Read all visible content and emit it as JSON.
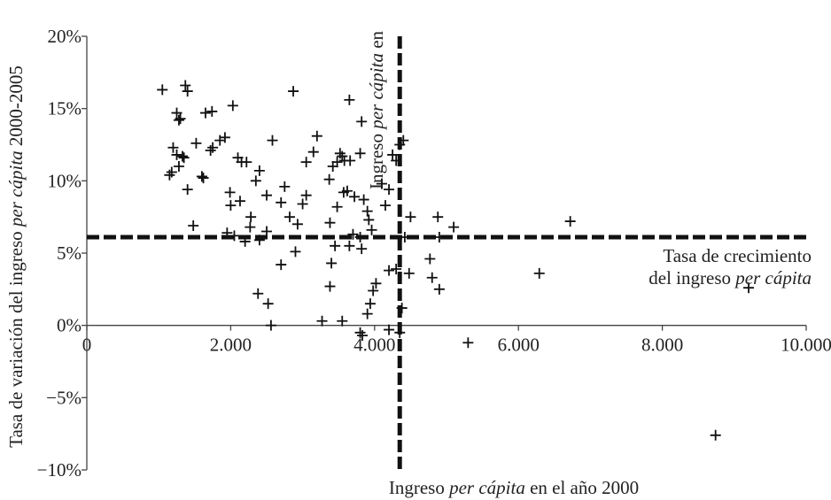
{
  "chart_data": {
    "type": "scatter",
    "xlabel": [
      "Ingreso ",
      "per cápita",
      " en el año 2000"
    ],
    "ylabel": [
      "Tasa de variación del ingreso ",
      "per cápita",
      " 2000-2005"
    ],
    "x_ticks": [
      "0",
      "2.000",
      "4.000",
      "6.000",
      "8.000",
      "10.000"
    ],
    "y_ticks": [
      "−10%",
      "−5%",
      "0%",
      "5%",
      "10%",
      "15%",
      "20%"
    ],
    "xlim": [
      0,
      10000
    ],
    "ylim": [
      -10,
      20
    ],
    "y_unit": "%",
    "grid": false,
    "legend": "none",
    "reference_lines": {
      "vertical_x": 4350,
      "horizontal_y": 6.1
    },
    "annotations": {
      "horizontal_line_label": [
        "Tasa de crecimiento",
        "del ingreso ",
        "per cápita"
      ],
      "vertical_line_label": [
        "Ingreso ",
        "per cápita",
        " en"
      ]
    },
    "points": [
      [
        1050,
        16.3
      ],
      [
        1370,
        16.6
      ],
      [
        1400,
        16.2
      ],
      [
        2030,
        15.2
      ],
      [
        1650,
        14.7
      ],
      [
        1740,
        14.8
      ],
      [
        1250,
        14.7
      ],
      [
        1280,
        14.2
      ],
      [
        1300,
        14.3
      ],
      [
        1920,
        13.0
      ],
      [
        1850,
        12.8
      ],
      [
        1520,
        12.6
      ],
      [
        1200,
        12.3
      ],
      [
        1250,
        11.8
      ],
      [
        1330,
        11.7
      ],
      [
        1350,
        11.6
      ],
      [
        1280,
        11.0
      ],
      [
        1180,
        10.6
      ],
      [
        1150,
        10.4
      ],
      [
        1600,
        10.3
      ],
      [
        1620,
        10.2
      ],
      [
        1720,
        12.1
      ],
      [
        1750,
        12.3
      ],
      [
        2100,
        11.6
      ],
      [
        2150,
        11.3
      ],
      [
        2220,
        11.3
      ],
      [
        2350,
        10.0
      ],
      [
        2400,
        10.7
      ],
      [
        1990,
        9.2
      ],
      [
        1400,
        9.4
      ],
      [
        2500,
        9.0
      ],
      [
        2000,
        8.3
      ],
      [
        2130,
        8.6
      ],
      [
        2280,
        7.5
      ],
      [
        2270,
        6.8
      ],
      [
        1480,
        6.9
      ],
      [
        1950,
        6.4
      ],
      [
        2050,
        6.2
      ],
      [
        2200,
        5.8
      ],
      [
        2400,
        5.9
      ],
      [
        2580,
        12.8
      ],
      [
        2870,
        16.2
      ],
      [
        2750,
        9.6
      ],
      [
        2700,
        8.5
      ],
      [
        2820,
        7.5
      ],
      [
        2930,
        7.0
      ],
      [
        3000,
        8.4
      ],
      [
        3050,
        9.0
      ],
      [
        3050,
        11.3
      ],
      [
        3150,
        12.0
      ],
      [
        3200,
        13.1
      ],
      [
        2900,
        5.1
      ],
      [
        2700,
        4.2
      ],
      [
        2500,
        6.5
      ],
      [
        2380,
        2.2
      ],
      [
        2520,
        1.5
      ],
      [
        2560,
        0.0
      ],
      [
        3270,
        0.3
      ],
      [
        3380,
        2.7
      ],
      [
        3400,
        4.3
      ],
      [
        3450,
        5.5
      ],
      [
        3380,
        7.1
      ],
      [
        3480,
        8.2
      ],
      [
        3370,
        10.1
      ],
      [
        3420,
        11.0
      ],
      [
        3480,
        11.3
      ],
      [
        3520,
        11.9
      ],
      [
        3550,
        11.7
      ],
      [
        3580,
        11.4
      ],
      [
        3660,
        11.4
      ],
      [
        3620,
        9.3
      ],
      [
        3570,
        9.2
      ],
      [
        3720,
        8.9
      ],
      [
        3650,
        15.6
      ],
      [
        3800,
        11.9
      ],
      [
        3820,
        14.1
      ],
      [
        3850,
        8.7
      ],
      [
        3900,
        7.9
      ],
      [
        3920,
        7.3
      ],
      [
        3960,
        6.6
      ],
      [
        3700,
        6.3
      ],
      [
        3800,
        6.1
      ],
      [
        3650,
        5.5
      ],
      [
        3820,
        5.3
      ],
      [
        3980,
        2.4
      ],
      [
        4020,
        2.9
      ],
      [
        3940,
        1.5
      ],
      [
        3900,
        0.8
      ],
      [
        3800,
        -0.5
      ],
      [
        3830,
        -0.7
      ],
      [
        3550,
        0.3
      ],
      [
        4100,
        9.8
      ],
      [
        4150,
        8.3
      ],
      [
        4200,
        9.4
      ],
      [
        4250,
        11.8
      ],
      [
        4300,
        11.4
      ],
      [
        4350,
        12.5
      ],
      [
        4400,
        12.8
      ],
      [
        4420,
        6.1
      ],
      [
        4500,
        7.5
      ],
      [
        4480,
        3.6
      ],
      [
        4300,
        3.9
      ],
      [
        4200,
        3.8
      ],
      [
        4380,
        1.2
      ],
      [
        4200,
        -0.3
      ],
      [
        4350,
        -0.5
      ],
      [
        4880,
        7.5
      ],
      [
        4900,
        6.1
      ],
      [
        5100,
        6.8
      ],
      [
        4770,
        4.6
      ],
      [
        4800,
        3.3
      ],
      [
        4900,
        2.5
      ],
      [
        5300,
        -1.2
      ],
      [
        6290,
        3.6
      ],
      [
        6720,
        7.2
      ],
      [
        8740,
        -7.6
      ],
      [
        9200,
        2.6
      ]
    ]
  }
}
